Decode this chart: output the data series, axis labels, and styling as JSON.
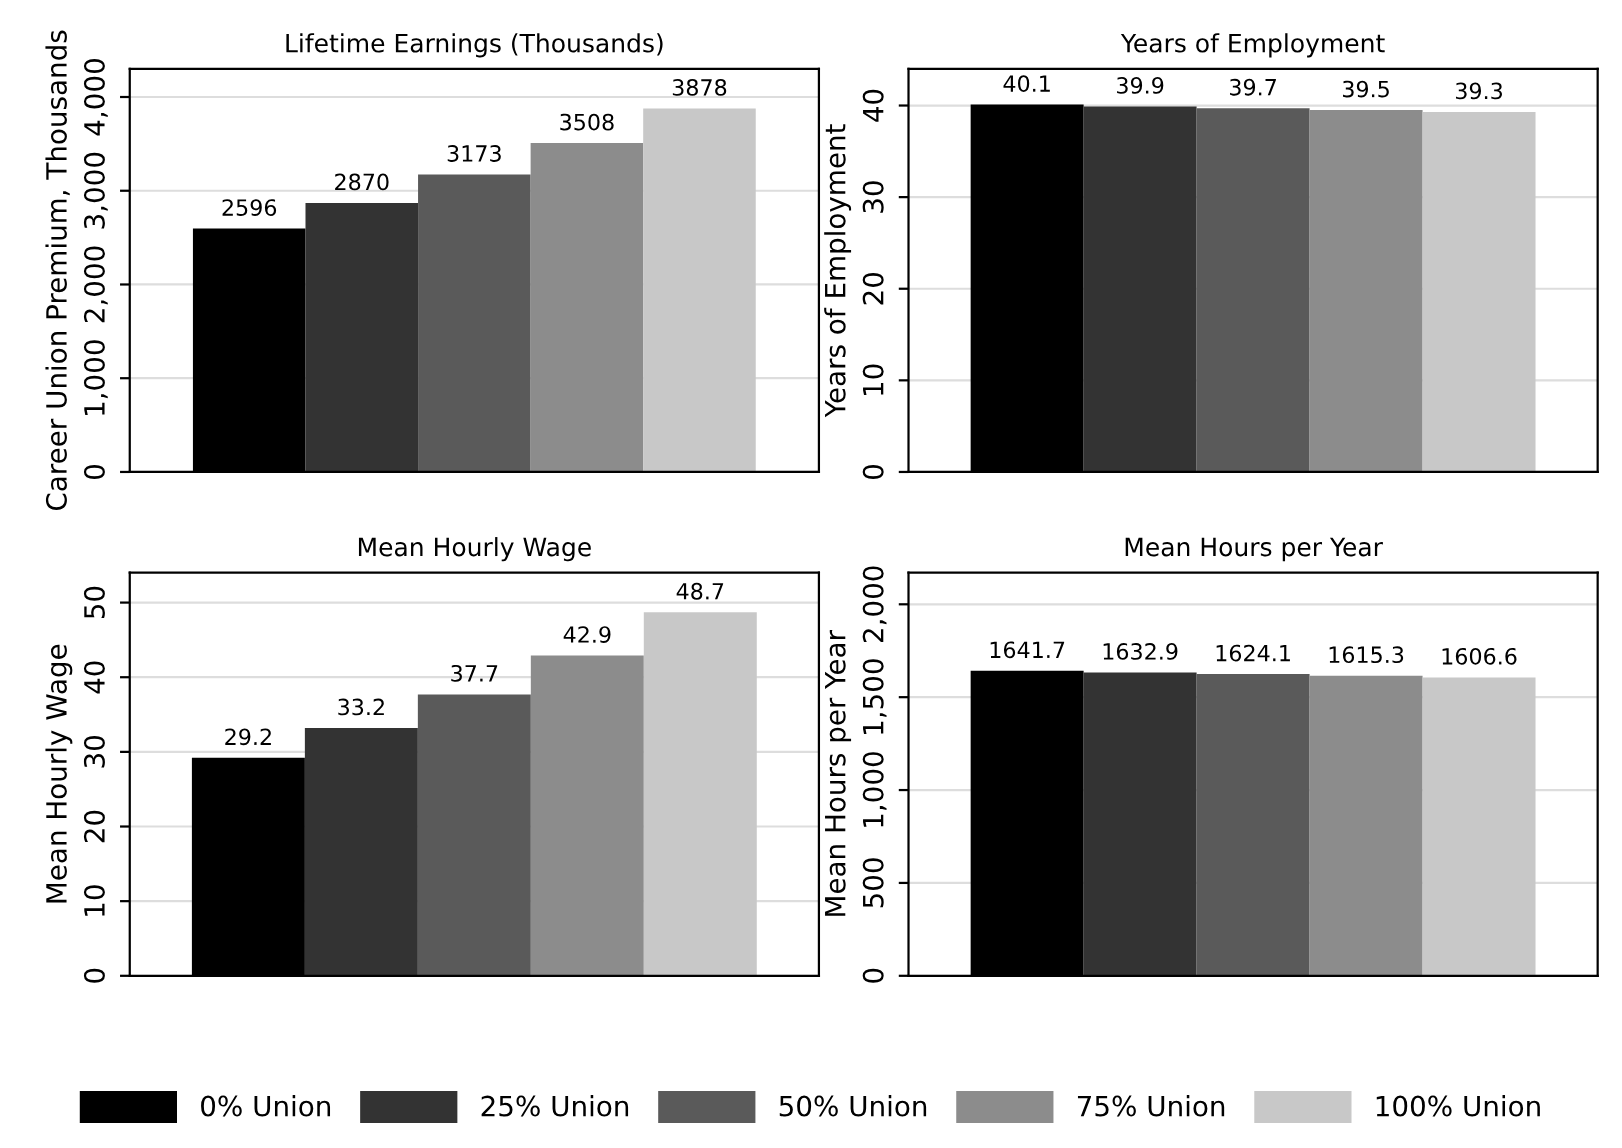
{
  "chart_data": [
    {
      "type": "bar",
      "title": "Lifetime Earnings (Thousands)",
      "ylabel": "Career Union Premium, Thousands",
      "categories": [
        null
      ],
      "ylim": [
        0,
        4300
      ],
      "yticks": [
        0,
        {
          "value": 1000,
          "label": "1,000"
        },
        {
          "value": 2000,
          "label": "2,000"
        },
        {
          "value": 3000,
          "label": "3,000"
        },
        {
          "value": 4000,
          "label": "4,000"
        }
      ],
      "grid": "y",
      "data_labels": true,
      "legend": "bottom",
      "series": [
        {
          "name": "0% Union",
          "color": "#000000",
          "values": [
            2596
          ]
        },
        {
          "name": "25% Union",
          "color": "#333333",
          "values": [
            2870
          ]
        },
        {
          "name": "50% Union",
          "color": "#5a5a5a",
          "values": [
            3173
          ]
        },
        {
          "name": "75% Union",
          "color": "#8c8c8c",
          "values": [
            3508
          ]
        },
        {
          "name": "100% Union",
          "color": "#c8c8c8",
          "values": [
            3878
          ]
        }
      ]
    },
    {
      "type": "bar",
      "title": "Years of Employment",
      "ylabel": "Years of Employment",
      "categories": [
        null,
        null,
        null,
        null,
        null
      ],
      "ylim": [
        0,
        44
      ],
      "yticks": [
        0,
        10,
        20,
        30,
        40
      ],
      "grid": "y",
      "data_labels": true,
      "values": [
        40.1,
        39.9,
        39.7,
        39.5,
        39.3
      ],
      "colors": [
        "#000000",
        "#333333",
        "#5a5a5a",
        "#8c8c8c",
        "#c8c8c8"
      ]
    },
    {
      "type": "bar",
      "title": "Mean Hourly Wage",
      "ylabel": "Mean Hourly Wage",
      "categories": [
        null,
        null,
        null,
        null,
        null
      ],
      "ylim": [
        0,
        54
      ],
      "yticks": [
        0,
        10,
        20,
        30,
        40,
        50
      ],
      "grid": "y",
      "data_labels": true,
      "values": [
        29.2,
        33.2,
        37.7,
        42.9,
        48.7
      ],
      "colors": [
        "#000000",
        "#333333",
        "#5a5a5a",
        "#8c8c8c",
        "#c8c8c8"
      ]
    },
    {
      "type": "bar",
      "title": "Mean Hours per Year",
      "ylabel": "Mean Hours per Year",
      "categories": [
        null,
        null,
        null,
        null,
        null
      ],
      "ylim": [
        0,
        2170
      ],
      "yticks": [
        0,
        500,
        {
          "value": 1000,
          "label": "1,000"
        },
        {
          "value": 1500,
          "label": "1,500"
        },
        {
          "value": 2000,
          "label": "2,000"
        }
      ],
      "grid": "y",
      "data_labels": true,
      "values": [
        1641.7,
        1632.9,
        1624.1,
        1615.3,
        1606.6
      ],
      "colors": [
        "#000000",
        "#333333",
        "#5a5a5a",
        "#8c8c8c",
        "#c8c8c8"
      ]
    }
  ]
}
